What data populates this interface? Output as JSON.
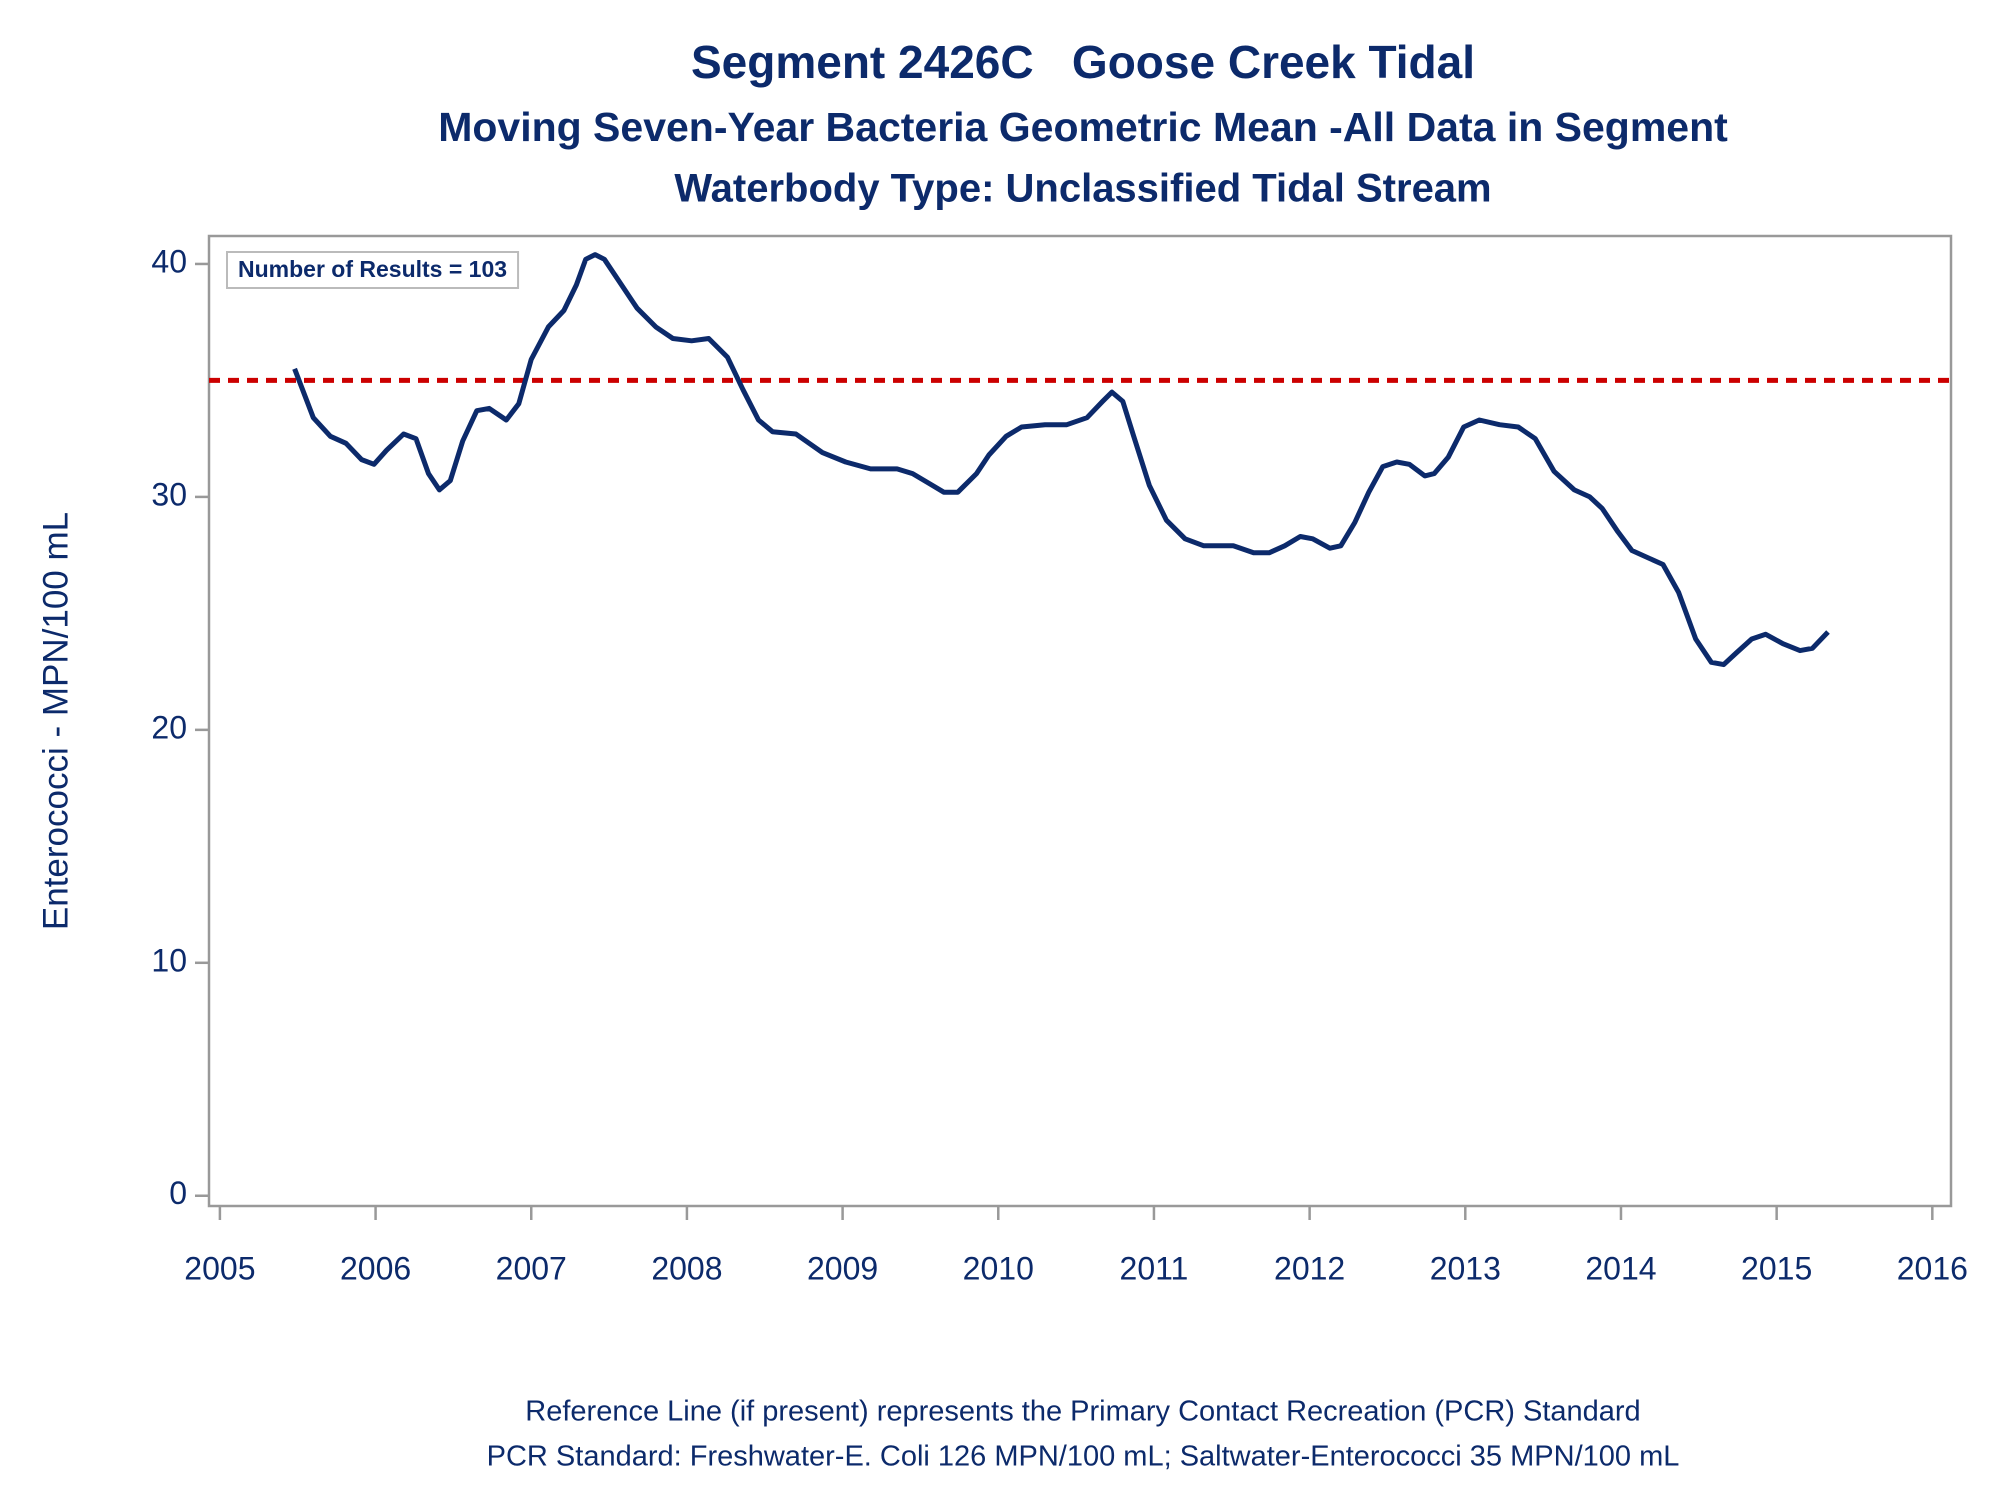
{
  "chart_data": {
    "type": "line",
    "title": "Segment 2426C   Goose Creek Tidal",
    "subtitle": "Moving Seven-Year Bacteria Geometric Mean -All Data in Segment",
    "subtitle2": "Waterbody Type: Unclassified Tidal Stream",
    "y_label": "Enterococci - MPN/100 mL",
    "annotation": "Number of Results = 103",
    "footnotes": [
      "Reference Line (if present) represents the Primary Contact Recreation (PCR) Standard",
      "PCR Standard: Freshwater-E. Coli 126 MPN/100 mL; Saltwater-Enterococci 35 MPN/100 mL"
    ],
    "x": [
      2005.48,
      2005.6,
      2005.71,
      2005.81,
      2005.91,
      2005.99,
      2006.07,
      2006.18,
      2006.26,
      2006.34,
      2006.41,
      2006.48,
      2006.56,
      2006.65,
      2006.73,
      2006.84,
      2006.92,
      2007.0,
      2007.11,
      2007.21,
      2007.29,
      2007.35,
      2007.41,
      2007.47,
      2007.58,
      2007.68,
      2007.8,
      2007.91,
      2008.03,
      2008.14,
      2008.26,
      2008.36,
      2008.46,
      2008.55,
      2008.7,
      2008.87,
      2009.02,
      2009.18,
      2009.35,
      2009.45,
      2009.55,
      2009.65,
      2009.74,
      2009.86,
      2009.94,
      2010.05,
      2010.15,
      2010.3,
      2010.44,
      2010.57,
      2010.67,
      2010.73,
      2010.8,
      2010.87,
      2010.97,
      2011.08,
      2011.2,
      2011.32,
      2011.51,
      2011.64,
      2011.74,
      2011.84,
      2011.94,
      2012.02,
      2012.13,
      2012.2,
      2012.29,
      2012.38,
      2012.47,
      2012.56,
      2012.64,
      2012.74,
      2012.8,
      2012.89,
      2012.99,
      2013.09,
      2013.22,
      2013.34,
      2013.45,
      2013.57,
      2013.7,
      2013.8,
      2013.88,
      2013.98,
      2014.07,
      2014.17,
      2014.27,
      2014.37,
      2014.48,
      2014.58,
      2014.66,
      2014.74,
      2014.84,
      2014.93,
      2015.04,
      2015.15,
      2015.23,
      2015.33
    ],
    "values": [
      35.5,
      33.4,
      32.6,
      32.3,
      31.6,
      31.4,
      32.0,
      32.7,
      32.5,
      31.0,
      30.3,
      30.7,
      32.4,
      33.7,
      33.8,
      33.3,
      34.0,
      35.9,
      37.3,
      38.0,
      39.1,
      40.2,
      40.4,
      40.2,
      39.1,
      38.1,
      37.3,
      36.8,
      36.7,
      36.8,
      36.0,
      34.6,
      33.3,
      32.8,
      32.7,
      31.9,
      31.5,
      31.2,
      31.2,
      31.0,
      30.6,
      30.2,
      30.2,
      31.0,
      31.8,
      32.6,
      33.0,
      33.1,
      33.1,
      33.4,
      34.1,
      34.5,
      34.1,
      32.6,
      30.5,
      29.0,
      28.2,
      27.9,
      27.9,
      27.6,
      27.6,
      27.9,
      28.3,
      28.2,
      27.8,
      27.9,
      28.9,
      30.2,
      31.3,
      31.5,
      31.4,
      30.9,
      31.0,
      31.7,
      33.0,
      33.3,
      33.1,
      33.0,
      32.5,
      31.1,
      30.3,
      30.0,
      29.5,
      28.5,
      27.7,
      27.4,
      27.1,
      25.9,
      23.9,
      22.9,
      22.8,
      23.3,
      23.9,
      24.1,
      23.7,
      23.4,
      23.5,
      24.2
    ],
    "color": "#0c2a6b",
    "reference_line": {
      "value": 35,
      "color": "#cc0000"
    },
    "xlim": [
      2004.93,
      2016.12
    ],
    "ylim": [
      -0.44,
      41.2
    ],
    "xticks": [
      2005,
      2006,
      2007,
      2008,
      2009,
      2010,
      2011,
      2012,
      2013,
      2014,
      2015,
      2016
    ],
    "yticks": [
      0,
      10,
      20,
      30,
      40
    ]
  }
}
